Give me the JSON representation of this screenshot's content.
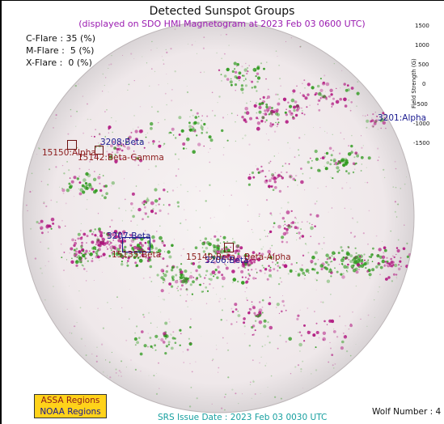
{
  "title": "Detected Sunspot Groups",
  "subtitle": "(displayed on SDO HMI Magnetogram at 2023 Feb 03 0600 UTC)",
  "flares": [
    {
      "label": "C-Flare : 35 (%)"
    },
    {
      "label": "M-Flare :  5 (%)"
    },
    {
      "label": "X-Flare :  0 (%)"
    }
  ],
  "colorbar": {
    "title": "Field Strength (G)",
    "ticks": [
      "1500",
      "1000",
      "500",
      "0",
      "-500",
      "-1000",
      "-1500"
    ]
  },
  "regions": {
    "r3201": "3201:Alpha",
    "r3208": "3208:Beta",
    "r15150": "15150:Alpha",
    "r15142": "15142:Beta-Gamma",
    "r3207": "3207:Beta",
    "r15135": "15135:Beta",
    "r15149": "15149:Beta",
    "r3206": "3206:Beta",
    "rbetaalpha": "Beta-Alpha"
  },
  "legend": {
    "assa": "ASSA Regions",
    "noaa": "NOAA Regions"
  },
  "srs_date": "SRS Issue Date : 2023 Feb 03 0030 UTC",
  "wolf_number": "Wolf Number : 4",
  "colors": {
    "negative": "#b0157f",
    "positive": "#2f9a1e",
    "noaa_text": "#1a1a8f",
    "assa_text": "#8b1a1a",
    "legend_bg": "#ffd21a",
    "subtitle": "#9a1ab0",
    "srs": "#17a0a0"
  }
}
